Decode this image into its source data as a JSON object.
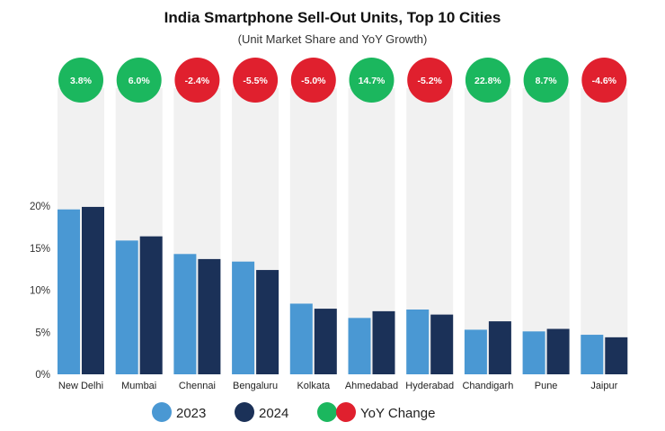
{
  "chart_data": {
    "type": "bar",
    "title": "India Smartphone Sell-Out Units, Top 10 Cities",
    "subtitle": "(Unit Market Share and YoY Growth)",
    "categories": [
      "New Delhi",
      "Mumbai",
      "Chennai",
      "Bengaluru",
      "Kolkata",
      "Ahmedabad",
      "Hyderabad",
      "Chandigarh",
      "Pune",
      "Jaipur"
    ],
    "series": [
      {
        "name": "2023",
        "color": "#4a98d3",
        "values": [
          19.6,
          15.9,
          14.3,
          13.4,
          8.4,
          6.7,
          7.7,
          5.3,
          5.1,
          4.7
        ]
      },
      {
        "name": "2024",
        "color": "#1b3158",
        "values": [
          19.9,
          16.4,
          13.7,
          12.4,
          7.8,
          7.5,
          7.1,
          6.3,
          5.4,
          4.4
        ]
      }
    ],
    "yoy_change": {
      "name": "YoY Change",
      "labels": [
        "3.8%",
        "6.0%",
        "-2.4%",
        "-5.5%",
        "-5.0%",
        "14.7%",
        "-5.2%",
        "22.8%",
        "8.7%",
        "-4.6%"
      ],
      "positive_color": "#1bb75e",
      "negative_color": "#e0202e"
    },
    "ylim": [
      0,
      20
    ],
    "yticks": [
      "0%",
      "5%",
      "10%",
      "15%",
      "20%"
    ],
    "ytick_values": [
      0,
      5,
      10,
      15,
      20
    ],
    "grid": false,
    "legend_position": "bottom",
    "band_color": "#f1f1f1"
  }
}
